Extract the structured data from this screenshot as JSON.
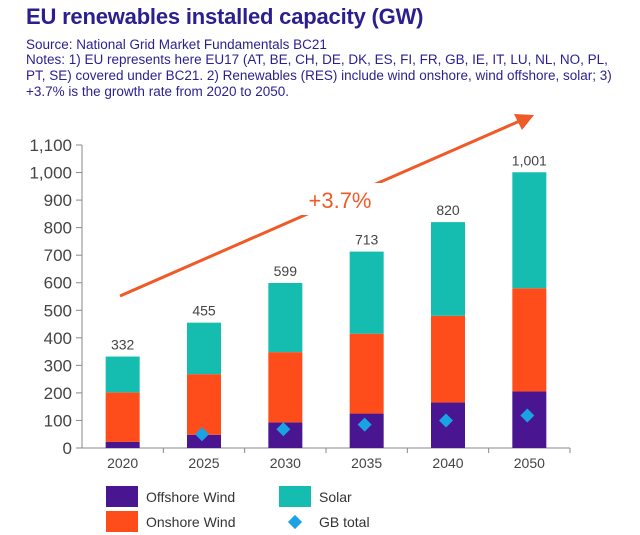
{
  "header": {
    "title": "EU renewables installed capacity (GW)",
    "source": "Source: National Grid Market Fundamentals BC21",
    "notes": "Notes: 1) EU represents here EU17 (AT, BE, CH, DE, DK, ES, FI, FR, GB, IE, IT, LU, NL, NO, PL, PT, SE) covered under BC21. 2) Renewables (RES) include wind onshore, wind offshore, solar; 3) +3.7% is the growth rate from 2020 to 2050."
  },
  "colors": {
    "offshore": "#4a1590",
    "onshore": "#fe4d1b",
    "solar": "#15bdb0",
    "gb": "#1aa3e4",
    "arrow": "#f05a28",
    "axis": "#888888",
    "tick_text": "#444444"
  },
  "chart_data": {
    "type": "bar",
    "stacked": true,
    "categories": [
      "2020",
      "2025",
      "2030",
      "2035",
      "2040",
      "2050"
    ],
    "series": [
      {
        "name": "Offshore Wind",
        "values": [
          22,
          48,
          93,
          125,
          165,
          205
        ]
      },
      {
        "name": "Onshore Wind",
        "values": [
          180,
          220,
          255,
          290,
          315,
          375
        ]
      },
      {
        "name": "Solar",
        "values": [
          130,
          187,
          251,
          298,
          340,
          421
        ]
      }
    ],
    "totals": [
      332,
      455,
      599,
      713,
      820,
      1001
    ],
    "total_labels": [
      "332",
      "455",
      "599",
      "713",
      "820",
      "1,001"
    ],
    "gb_total": {
      "name": "GB total",
      "values": [
        null,
        50,
        68,
        85,
        100,
        118
      ]
    },
    "ylim": [
      0,
      1100
    ],
    "yticks": [
      0,
      100,
      200,
      300,
      400,
      500,
      600,
      700,
      800,
      900,
      1000,
      1100
    ],
    "ytick_labels": [
      "0",
      "100",
      "200",
      "300",
      "400",
      "500",
      "600",
      "700",
      "800",
      "900",
      "1,000",
      "1,100"
    ],
    "annotation": "+3.7%",
    "legend": [
      "Offshore Wind",
      "Solar",
      "Onshore Wind",
      "GB total"
    ]
  }
}
